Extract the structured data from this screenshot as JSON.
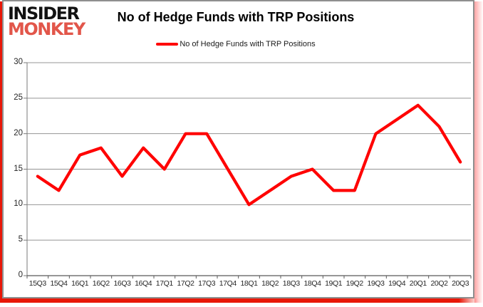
{
  "logo": {
    "line1": "INSIDER",
    "line2": "MONKEY"
  },
  "header": {
    "title": "No of Hedge Funds with TRP Positions"
  },
  "legend": {
    "label": "No of Hedge Funds with TRP Positions"
  },
  "chart_data": {
    "type": "line",
    "title": "No of Hedge Funds with TRP Positions",
    "series_name": "No of Hedge Funds with TRP Positions",
    "categories": [
      "15Q3",
      "15Q4",
      "16Q1",
      "16Q2",
      "16Q3",
      "16Q4",
      "17Q1",
      "17Q2",
      "17Q3",
      "17Q4",
      "18Q1",
      "18Q2",
      "18Q3",
      "18Q4",
      "19Q1",
      "19Q2",
      "19Q3",
      "19Q4",
      "20Q1",
      "20Q2",
      "20Q3"
    ],
    "values": [
      14,
      12,
      17,
      18,
      14,
      18,
      15,
      20,
      20,
      15,
      10,
      12,
      14,
      15,
      12,
      12,
      20,
      22,
      24,
      21,
      16
    ],
    "ylim": [
      0,
      30
    ],
    "yticks": [
      0,
      5,
      10,
      15,
      20,
      25,
      30
    ],
    "grid": true,
    "legend_position": "top-center",
    "xlabel": "",
    "ylabel": ""
  },
  "colors": {
    "line": "#ff0000",
    "gridline": "#949494",
    "x_axis": "#595959",
    "y_axis": "#7a7a7a",
    "brand_red": "#e2564a",
    "accent_red": "#e81708",
    "frame_border": "#8f8f8f"
  }
}
